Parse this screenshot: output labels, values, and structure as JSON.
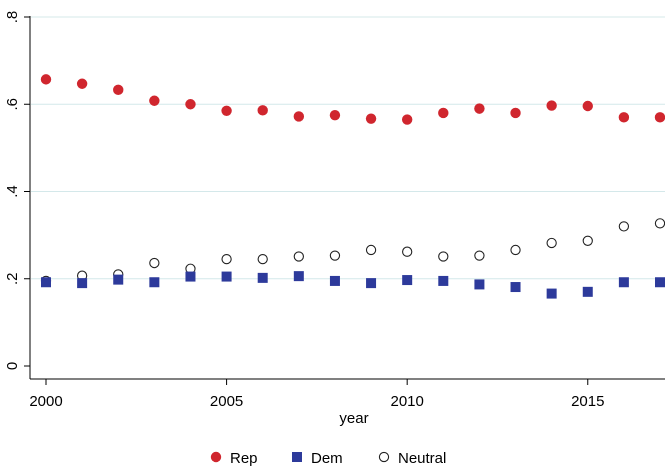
{
  "chart_data": {
    "type": "scatter",
    "title": "",
    "xlabel": "year",
    "ylabel": "",
    "xlim": [
      2000,
      2017
    ],
    "ylim": [
      0,
      0.8
    ],
    "x_ticks": [
      {
        "value": 2000,
        "label": "2000"
      },
      {
        "value": 2005,
        "label": "2005"
      },
      {
        "value": 2010,
        "label": "2010"
      },
      {
        "value": 2015,
        "label": "2015"
      }
    ],
    "y_ticks": [
      {
        "value": 0,
        "label": "0"
      },
      {
        "value": 0.2,
        "label": ".2"
      },
      {
        "value": 0.4,
        "label": ".4"
      },
      {
        "value": 0.6,
        "label": ".6"
      },
      {
        "value": 0.8,
        "label": ".8"
      }
    ],
    "gridlines": "horizontal",
    "legend_position": "bottom",
    "x": [
      2000,
      2001,
      2002,
      2003,
      2004,
      2005,
      2006,
      2007,
      2008,
      2009,
      2010,
      2011,
      2012,
      2013,
      2014,
      2015,
      2016,
      2017
    ],
    "series": [
      {
        "name": "Rep",
        "marker": "filled-circle",
        "color": "#d0262e",
        "values": [
          0.657,
          0.647,
          0.633,
          0.608,
          0.6,
          0.585,
          0.586,
          0.572,
          0.575,
          0.567,
          0.565,
          0.58,
          0.59,
          0.58,
          0.597,
          0.596,
          0.57,
          0.57
        ]
      },
      {
        "name": "Dem",
        "marker": "filled-square",
        "color": "#2d3a9b",
        "values": [
          0.192,
          0.19,
          0.198,
          0.192,
          0.205,
          0.205,
          0.202,
          0.206,
          0.195,
          0.19,
          0.197,
          0.195,
          0.187,
          0.181,
          0.166,
          0.17,
          0.192,
          0.192
        ]
      },
      {
        "name": "Neutral",
        "marker": "hollow-circle",
        "color": "#222222",
        "values": [
          0.195,
          0.207,
          0.21,
          0.236,
          0.223,
          0.245,
          0.245,
          0.251,
          0.253,
          0.266,
          0.262,
          0.251,
          0.253,
          0.266,
          0.282,
          0.287,
          0.32,
          0.327
        ]
      }
    ]
  },
  "colors": {
    "gridline": "#d4e8ea",
    "axis": "#000000"
  }
}
